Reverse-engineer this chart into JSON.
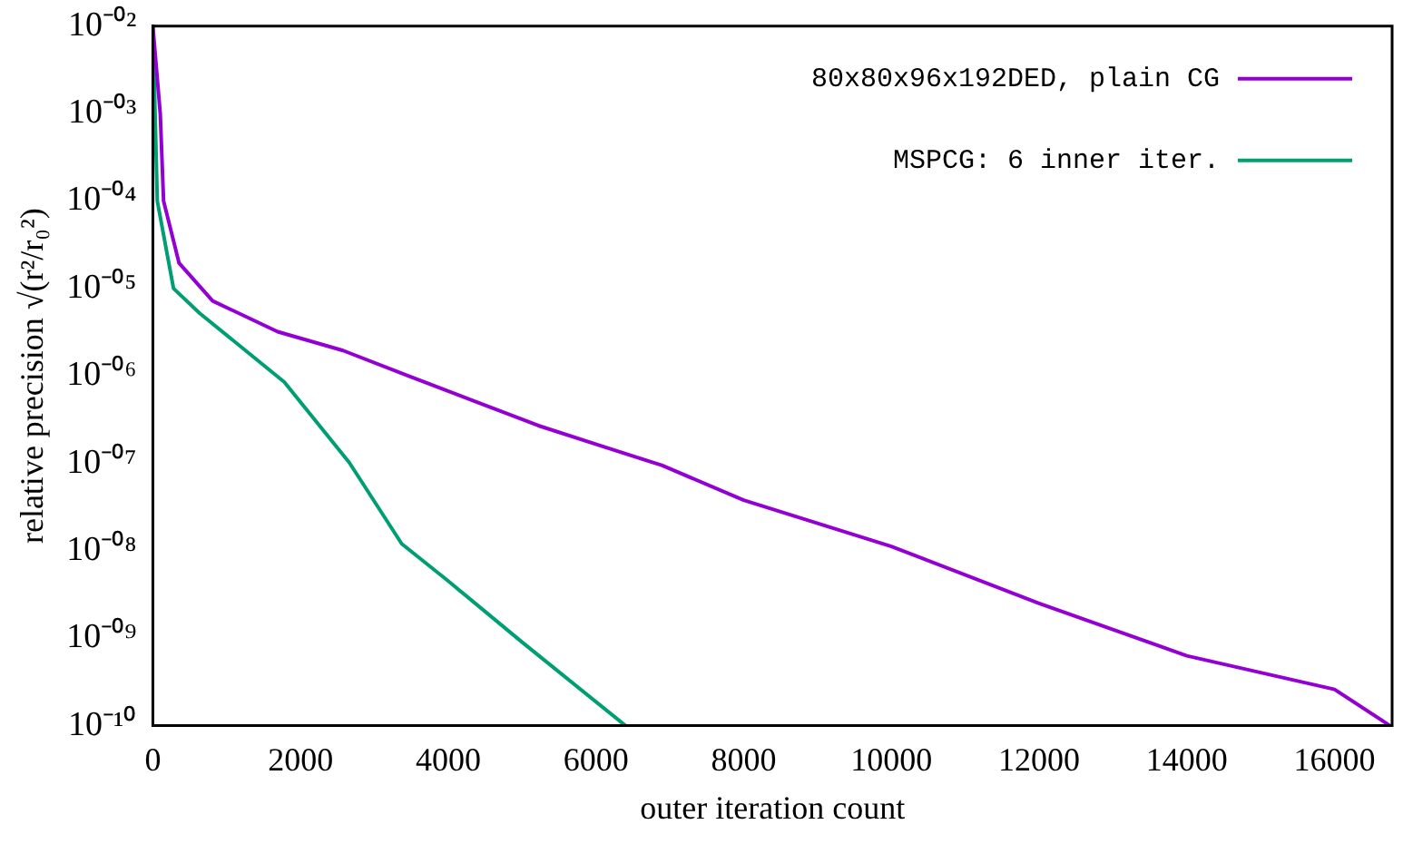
{
  "chart_data": {
    "type": "line",
    "xlabel": "outer iteration count",
    "ylabel": "relative precision √(r²/r₀²)",
    "log": "y",
    "grid": false,
    "legend": "top right",
    "marker": "none",
    "line_style": "solid",
    "xlim": [
      0,
      16780
    ],
    "xticks": [
      0,
      2000,
      4000,
      6000,
      8000,
      10000,
      12000,
      14000,
      16000
    ],
    "ylim": [
      1e-10,
      0.01
    ],
    "yticks": [
      {
        "value": 0.01,
        "label": "10⁻⁰²"
      },
      {
        "value": 0.001,
        "label": "10⁻⁰³"
      },
      {
        "value": 0.0001,
        "label": "10⁻⁰⁴"
      },
      {
        "value": 1e-05,
        "label": "10⁻⁰⁵"
      },
      {
        "value": 1e-06,
        "label": "10⁻⁰⁶"
      },
      {
        "value": 1e-07,
        "label": "10⁻⁰⁷"
      },
      {
        "value": 1e-08,
        "label": "10⁻⁰⁸"
      },
      {
        "value": 1e-09,
        "label": "10⁻⁰⁹"
      },
      {
        "value": 1e-10,
        "label": "10⁻¹⁰"
      }
    ],
    "series": [
      {
        "name": "80x80x96x192DED, plain CG",
        "color": "#9400d3",
        "x": [
          0,
          100,
          145,
          355,
          810,
          1690,
          2575,
          3457,
          4340,
          5220,
          6100,
          6890,
          8000,
          10000,
          12000,
          14000,
          16000,
          16750
        ],
        "values": [
          0.01,
          0.001,
          0.0001,
          1.95e-05,
          7.2e-06,
          3.2e-06,
          1.95e-06,
          1e-06,
          5.2e-07,
          2.7e-07,
          1.55e-07,
          9.5e-08,
          3.8e-08,
          1.12e-08,
          2.5e-09,
          6.3e-10,
          2.6e-10,
          1e-10
        ]
      },
      {
        "name": "MSPCG: 6 inner iter.",
        "color": "#009e73",
        "x": [
          0,
          60,
          280,
          635,
          1780,
          2660,
          3370,
          4000,
          5000,
          6400
        ],
        "values": [
          0.01,
          0.0001,
          1e-05,
          5.2e-06,
          8.5e-07,
          1.02e-07,
          1.2e-08,
          4.5e-09,
          9e-10,
          1e-10
        ]
      }
    ]
  }
}
